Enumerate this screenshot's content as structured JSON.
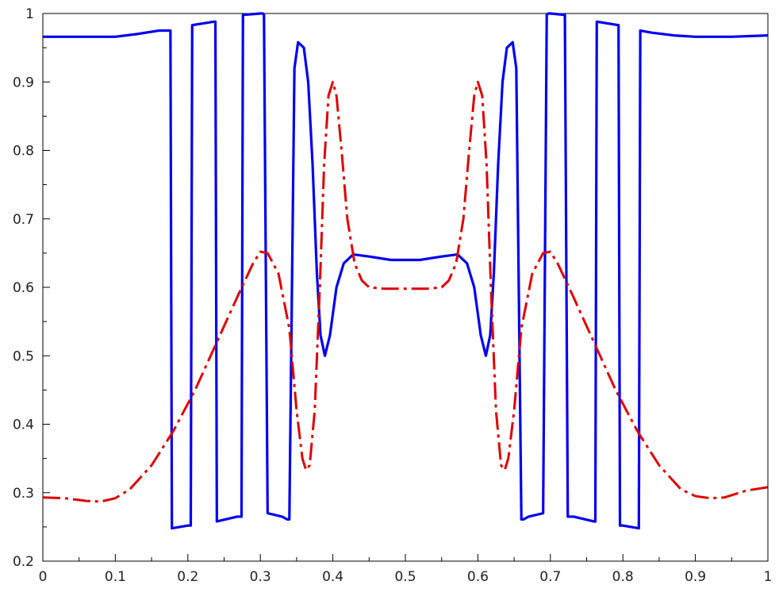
{
  "chart_data": {
    "type": "line",
    "title": "",
    "xlabel": "",
    "ylabel": "",
    "xlim": [
      0,
      1
    ],
    "ylim": [
      0.2,
      1
    ],
    "x_ticks": [
      "0",
      "0.1",
      "0.2",
      "0.3",
      "0.4",
      "0.5",
      "0.6",
      "0.7",
      "0.8",
      "0.9",
      "1"
    ],
    "y_ticks": [
      "0.2",
      "0.3",
      "0.4",
      "0.5",
      "0.6",
      "0.7",
      "0.8",
      "0.9",
      "1"
    ],
    "grid": false,
    "legend": "none",
    "series": [
      {
        "color": "#0000ee",
        "style": "solid",
        "x": [
          0,
          0.05,
          0.1,
          0.13,
          0.16,
          0.176,
          0.178,
          0.2,
          0.204,
          0.206,
          0.236,
          0.238,
          0.24,
          0.268,
          0.274,
          0.276,
          0.3,
          0.3035,
          0.305,
          0.31,
          0.33,
          0.337,
          0.34,
          0.347,
          0.352,
          0.36,
          0.366,
          0.372,
          0.378,
          0.383,
          0.389,
          0.396,
          0.405,
          0.415,
          0.428,
          0.45,
          0.48,
          0.5,
          0.52,
          0.55,
          0.572,
          0.585,
          0.595,
          0.604,
          0.611,
          0.617,
          0.622,
          0.628,
          0.634,
          0.64,
          0.648,
          0.653,
          0.66,
          0.663,
          0.67,
          0.69,
          0.695,
          0.697,
          0.7,
          0.72,
          0.724,
          0.726,
          0.732,
          0.76,
          0.762,
          0.764,
          0.794,
          0.796,
          0.8,
          0.822,
          0.824,
          0.84,
          0.87,
          0.9,
          0.95,
          1
        ],
        "y": [
          0.966,
          0.966,
          0.966,
          0.97,
          0.975,
          0.975,
          0.248,
          0.252,
          0.252,
          0.983,
          0.988,
          0.988,
          0.258,
          0.265,
          0.265,
          0.998,
          1.0,
          1.0,
          0.998,
          0.27,
          0.265,
          0.261,
          0.261,
          0.92,
          0.958,
          0.95,
          0.9,
          0.78,
          0.62,
          0.53,
          0.5,
          0.53,
          0.6,
          0.635,
          0.648,
          0.645,
          0.64,
          0.64,
          0.64,
          0.645,
          0.648,
          0.635,
          0.6,
          0.53,
          0.5,
          0.53,
          0.62,
          0.78,
          0.9,
          0.95,
          0.958,
          0.92,
          0.261,
          0.261,
          0.265,
          0.27,
          0.998,
          1.0,
          1.0,
          0.998,
          0.265,
          0.265,
          0.265,
          0.258,
          0.258,
          0.988,
          0.983,
          0.252,
          0.252,
          0.248,
          0.975,
          0.972,
          0.968,
          0.966,
          0.966,
          0.968
        ]
      },
      {
        "color": "#dd0000",
        "style": "dash-dot",
        "x": [
          0,
          0.03,
          0.06,
          0.08,
          0.1,
          0.12,
          0.15,
          0.18,
          0.21,
          0.24,
          0.27,
          0.29,
          0.3,
          0.31,
          0.325,
          0.34,
          0.35,
          0.358,
          0.363,
          0.368,
          0.375,
          0.382,
          0.388,
          0.394,
          0.4,
          0.405,
          0.412,
          0.42,
          0.43,
          0.44,
          0.45,
          0.47,
          0.5,
          0.53,
          0.55,
          0.56,
          0.57,
          0.58,
          0.588,
          0.595,
          0.6,
          0.606,
          0.612,
          0.618,
          0.625,
          0.632,
          0.637,
          0.642,
          0.65,
          0.66,
          0.675,
          0.69,
          0.7,
          0.71,
          0.73,
          0.76,
          0.79,
          0.82,
          0.85,
          0.88,
          0.9,
          0.92,
          0.94,
          0.97,
          1
        ],
        "y": [
          0.293,
          0.292,
          0.288,
          0.287,
          0.292,
          0.305,
          0.34,
          0.39,
          0.45,
          0.52,
          0.59,
          0.635,
          0.652,
          0.65,
          0.62,
          0.54,
          0.42,
          0.35,
          0.333,
          0.34,
          0.42,
          0.6,
          0.78,
          0.88,
          0.9,
          0.88,
          0.8,
          0.7,
          0.635,
          0.61,
          0.6,
          0.598,
          0.598,
          0.598,
          0.6,
          0.61,
          0.635,
          0.7,
          0.8,
          0.88,
          0.9,
          0.88,
          0.78,
          0.6,
          0.42,
          0.34,
          0.333,
          0.35,
          0.42,
          0.54,
          0.62,
          0.65,
          0.652,
          0.635,
          0.59,
          0.52,
          0.45,
          0.39,
          0.34,
          0.305,
          0.295,
          0.292,
          0.293,
          0.303,
          0.308
        ]
      }
    ]
  }
}
